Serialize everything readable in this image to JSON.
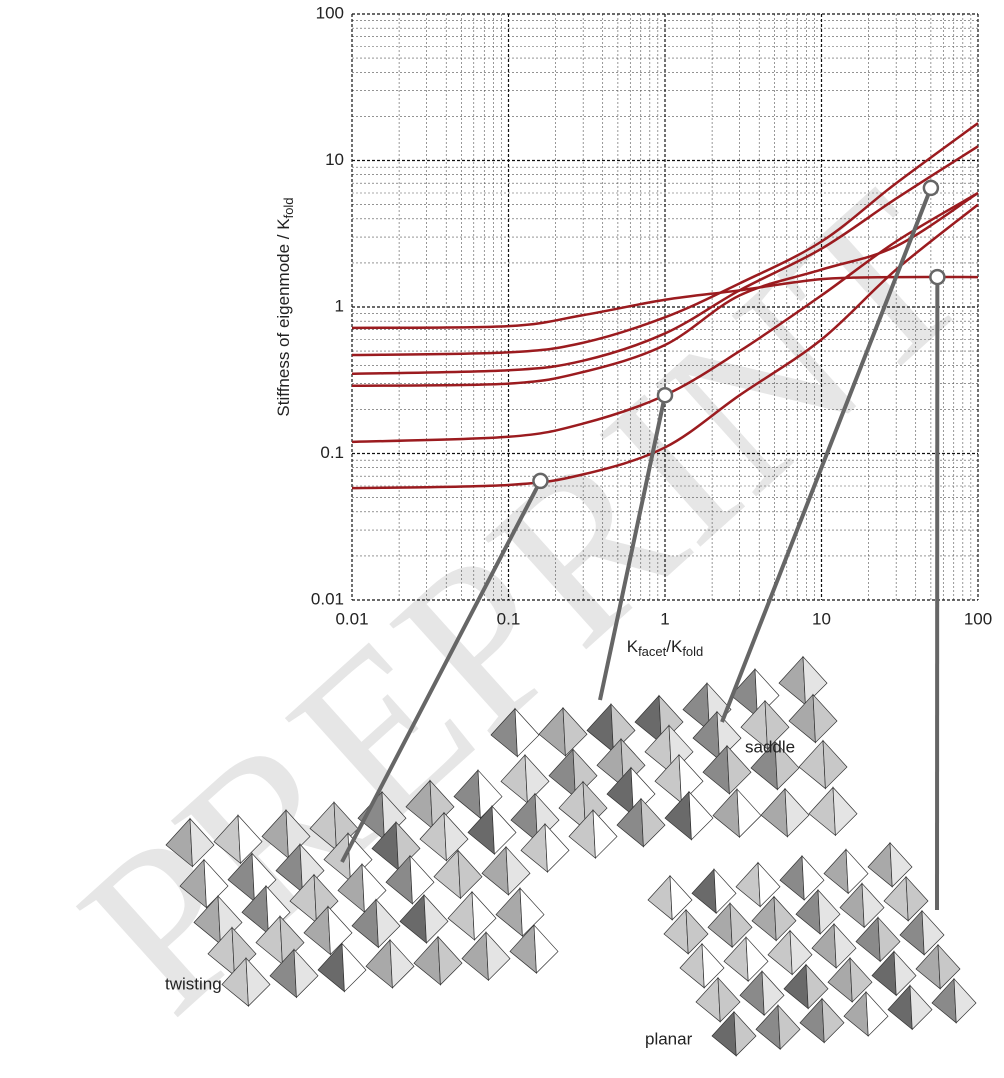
{
  "chart_data": {
    "type": "line",
    "watermark": "PREPRINT",
    "ylabel": [
      "Stiffness of eigenmode / K",
      "fold"
    ],
    "xlabel": [
      "K",
      "facet",
      "/K",
      "fold"
    ],
    "xlog": true,
    "ylog": true,
    "grid": true,
    "minor_grid": true,
    "xlim": [
      0.01,
      100
    ],
    "ylim": [
      0.01,
      100
    ],
    "xticks": [
      0.01,
      0.1,
      1,
      10,
      100
    ],
    "yticks": [
      0.01,
      0.1,
      1,
      10,
      100
    ],
    "x": [
      0.01,
      0.1,
      0.3,
      1,
      3,
      10,
      30,
      100
    ],
    "series": [
      {
        "color": "#9b1b1f",
        "values": [
          0.72,
          0.74,
          0.88,
          1.12,
          1.3,
          1.55,
          1.6,
          1.6
        ]
      },
      {
        "color": "#9b1b1f",
        "values": [
          0.47,
          0.49,
          0.57,
          0.85,
          1.45,
          2.8,
          7,
          18
        ]
      },
      {
        "color": "#9b1b1f",
        "values": [
          0.35,
          0.37,
          0.43,
          0.66,
          1.3,
          2.5,
          5.5,
          12.5
        ]
      },
      {
        "color": "#9b1b1f",
        "values": [
          0.29,
          0.3,
          0.36,
          0.55,
          1.2,
          1.8,
          2.6,
          6
        ]
      },
      {
        "color": "#9b1b1f",
        "values": [
          0.12,
          0.13,
          0.16,
          0.25,
          0.5,
          1.2,
          2.8,
          6
        ]
      },
      {
        "color": "#9b1b1f",
        "values": [
          0.058,
          0.061,
          0.072,
          0.11,
          0.25,
          0.6,
          1.8,
          5
        ]
      }
    ],
    "annotations": [
      {
        "label": "twisting",
        "x": 0.16,
        "y": 0.065
      },
      {
        "label": "saddle",
        "x": 50,
        "y": 6.5
      },
      {
        "label": "planar",
        "x": 55,
        "y": 1.6
      },
      {
        "x": 1,
        "y": 0.25
      }
    ]
  }
}
